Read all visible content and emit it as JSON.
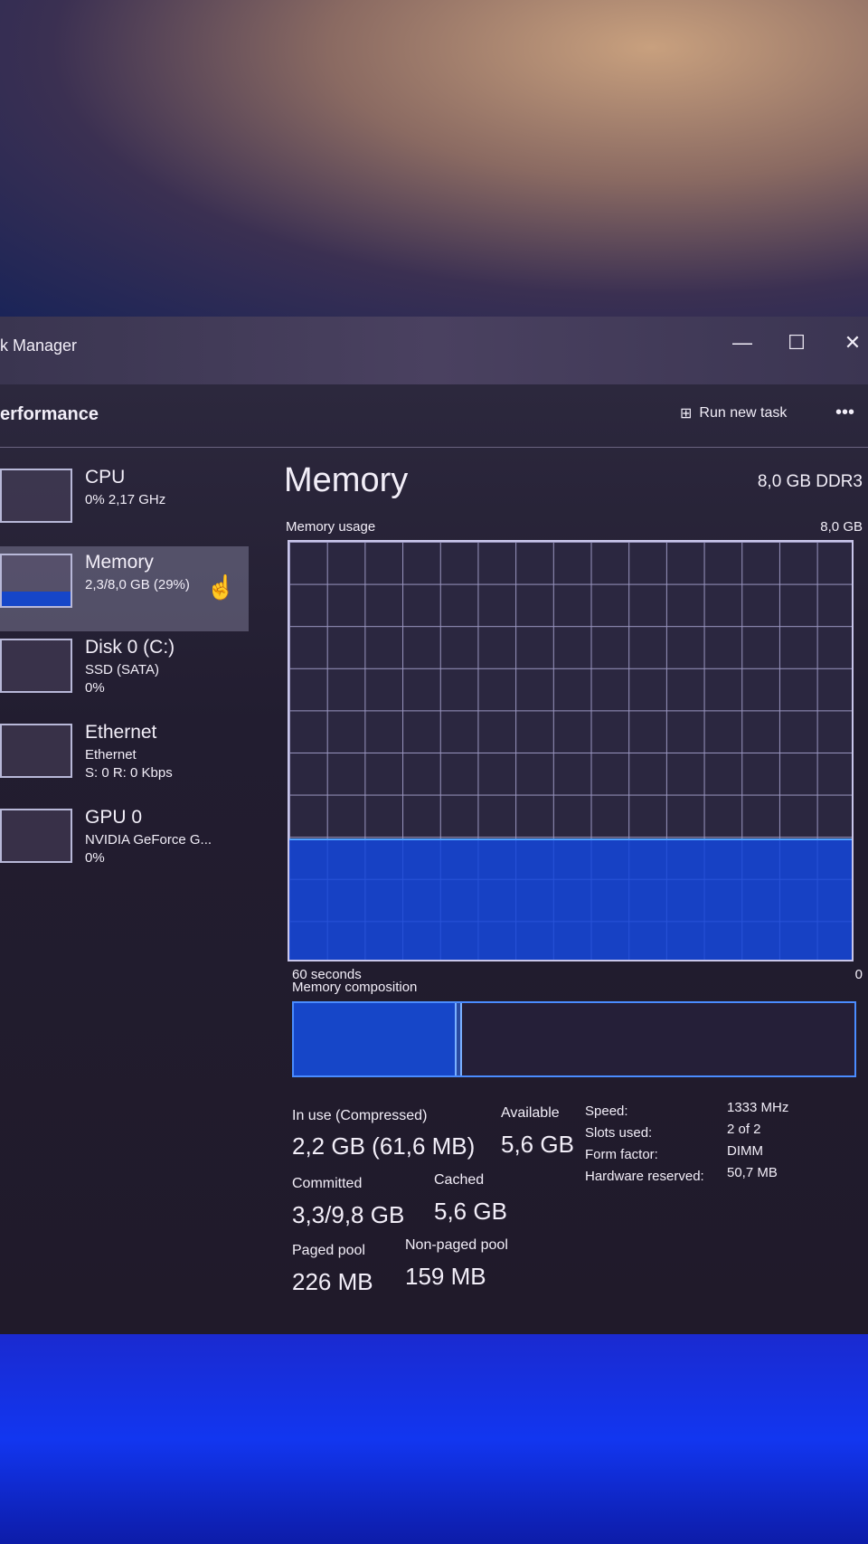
{
  "window": {
    "title": "k Manager",
    "minimize": "—",
    "maximize": "☐",
    "close": "✕"
  },
  "header": {
    "page": "erformance",
    "run_new_task": "Run new task",
    "more": "•••"
  },
  "sidebar": {
    "items": [
      {
        "name": "CPU",
        "sub": "0% 2,17 GHz",
        "sub2": ""
      },
      {
        "name": "Memory",
        "sub": "2,3/8,0 GB (29%)",
        "sub2": ""
      },
      {
        "name": "Disk 0 (C:)",
        "sub": "SSD (SATA)",
        "sub2": "0%"
      },
      {
        "name": "Ethernet",
        "sub": "Ethernet",
        "sub2": "S: 0 R: 0 Kbps"
      },
      {
        "name": "GPU 0",
        "sub": "NVIDIA GeForce G...",
        "sub2": "0%"
      }
    ]
  },
  "main": {
    "title": "Memory",
    "spec": "8,0 GB DDR3",
    "usage_label": "Memory usage",
    "usage_max": "8,0 GB",
    "usage_percent": 29,
    "time_label": "60 seconds",
    "zero": "0",
    "composition_label": "Memory composition",
    "composition_in_use_percent": 29,
    "stats": {
      "in_use_label": "In use (Compressed)",
      "in_use": "2,2 GB (61,6 MB)",
      "available_label": "Available",
      "available": "5,6 GB",
      "committed_label": "Committed",
      "committed": "3,3/9,8 GB",
      "cached_label": "Cached",
      "cached": "5,6 GB",
      "paged_label": "Paged pool",
      "paged": "226 MB",
      "nonpaged_label": "Non-paged pool",
      "nonpaged": "159 MB"
    },
    "specs": [
      {
        "k": "Speed:",
        "v": "1333 MHz"
      },
      {
        "k": "Slots used:",
        "v": "2 of 2"
      },
      {
        "k": "Form factor:",
        "v": "DIMM"
      },
      {
        "k": "Hardware reserved:",
        "v": "50,7 MB"
      }
    ]
  }
}
